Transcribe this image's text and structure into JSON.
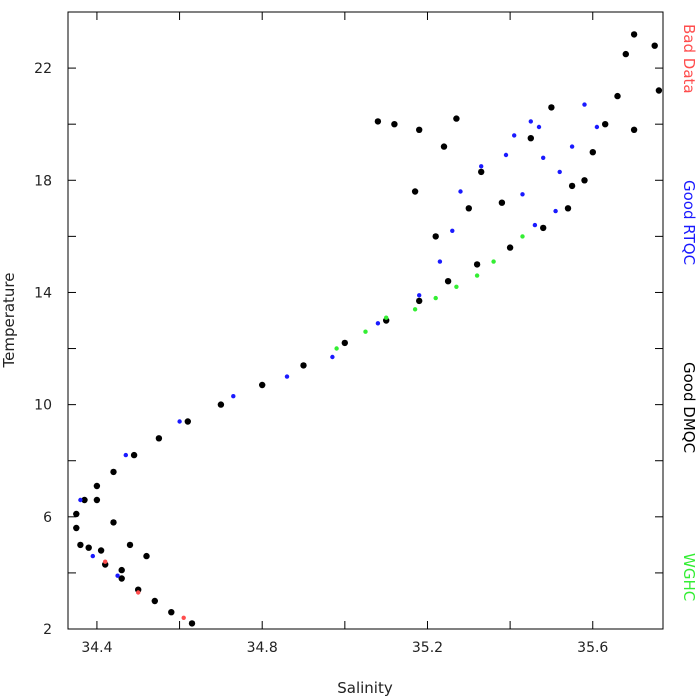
{
  "chart_data": {
    "type": "scatter",
    "title": "",
    "xlabel": "Salinity",
    "ylabel": "Temperature",
    "xlim": [
      34.33,
      35.77
    ],
    "ylim": [
      2,
      24
    ],
    "xticks": [
      34.4,
      34.8,
      35.2,
      35.6
    ],
    "yticks": [
      2,
      6,
      10,
      14,
      18,
      22
    ],
    "grid": false,
    "legend_position": "right-vertical",
    "series": [
      {
        "name": "Bad Data",
        "color": "#ff4d4d",
        "points": [
          [
            34.61,
            2.4
          ],
          [
            34.5,
            3.3
          ],
          [
            34.42,
            4.4
          ]
        ]
      },
      {
        "name": "Good RTQC",
        "color": "#1a1aff",
        "points": [
          [
            34.36,
            6.6
          ],
          [
            34.39,
            4.6
          ],
          [
            34.45,
            3.9
          ],
          [
            34.47,
            8.2
          ],
          [
            34.6,
            9.4
          ],
          [
            34.73,
            10.3
          ],
          [
            34.86,
            11.0
          ],
          [
            34.97,
            11.7
          ],
          [
            35.08,
            12.9
          ],
          [
            35.18,
            13.9
          ],
          [
            35.23,
            15.1
          ],
          [
            35.26,
            16.2
          ],
          [
            35.28,
            17.6
          ],
          [
            35.33,
            18.5
          ],
          [
            35.41,
            19.6
          ],
          [
            35.43,
            17.5
          ],
          [
            35.45,
            20.1
          ],
          [
            35.48,
            18.8
          ],
          [
            35.51,
            16.9
          ],
          [
            35.55,
            19.2
          ],
          [
            35.58,
            20.7
          ],
          [
            35.61,
            19.9
          ],
          [
            35.46,
            16.4
          ],
          [
            35.39,
            18.9
          ],
          [
            35.47,
            19.9
          ],
          [
            35.52,
            18.3
          ]
        ]
      },
      {
        "name": "Good DMQC",
        "color": "#000000",
        "points": [
          [
            34.63,
            2.2
          ],
          [
            34.58,
            2.6
          ],
          [
            34.54,
            3.0
          ],
          [
            34.5,
            3.4
          ],
          [
            34.46,
            3.8
          ],
          [
            34.42,
            4.3
          ],
          [
            34.38,
            4.9
          ],
          [
            34.35,
            5.6
          ],
          [
            34.35,
            6.1
          ],
          [
            34.37,
            6.6
          ],
          [
            34.4,
            7.1
          ],
          [
            34.44,
            7.6
          ],
          [
            34.49,
            8.2
          ],
          [
            34.55,
            8.8
          ],
          [
            34.62,
            9.4
          ],
          [
            34.7,
            10.0
          ],
          [
            34.8,
            10.7
          ],
          [
            34.9,
            11.4
          ],
          [
            35.0,
            12.2
          ],
          [
            35.1,
            13.0
          ],
          [
            35.18,
            13.7
          ],
          [
            35.25,
            14.4
          ],
          [
            35.32,
            15.0
          ],
          [
            35.4,
            15.6
          ],
          [
            35.48,
            16.3
          ],
          [
            35.54,
            17.0
          ],
          [
            35.58,
            18.0
          ],
          [
            35.6,
            19.0
          ],
          [
            35.63,
            20.0
          ],
          [
            35.66,
            21.0
          ],
          [
            35.68,
            22.5
          ],
          [
            35.7,
            23.2
          ],
          [
            35.75,
            22.8
          ],
          [
            35.76,
            21.2
          ],
          [
            35.7,
            19.8
          ],
          [
            35.27,
            20.2
          ],
          [
            35.24,
            19.2
          ],
          [
            35.33,
            18.3
          ],
          [
            35.3,
            17.0
          ],
          [
            35.38,
            17.2
          ],
          [
            35.45,
            19.5
          ],
          [
            35.5,
            20.6
          ],
          [
            35.55,
            17.8
          ],
          [
            35.08,
            20.1
          ],
          [
            35.12,
            20.0
          ],
          [
            35.18,
            19.8
          ],
          [
            35.17,
            17.6
          ],
          [
            35.22,
            16.0
          ],
          [
            34.48,
            5.0
          ],
          [
            34.52,
            4.6
          ],
          [
            34.44,
            5.8
          ],
          [
            34.4,
            6.6
          ],
          [
            34.36,
            5.0
          ],
          [
            34.41,
            4.8
          ],
          [
            34.46,
            4.1
          ]
        ]
      },
      {
        "name": "WGHC",
        "color": "#33ee33",
        "points": [
          [
            35.1,
            13.1
          ],
          [
            35.17,
            13.4
          ],
          [
            35.22,
            13.8
          ],
          [
            35.27,
            14.2
          ],
          [
            35.32,
            14.6
          ],
          [
            35.36,
            15.1
          ],
          [
            35.05,
            12.6
          ],
          [
            34.98,
            12.0
          ],
          [
            35.43,
            16.0
          ]
        ]
      }
    ]
  }
}
